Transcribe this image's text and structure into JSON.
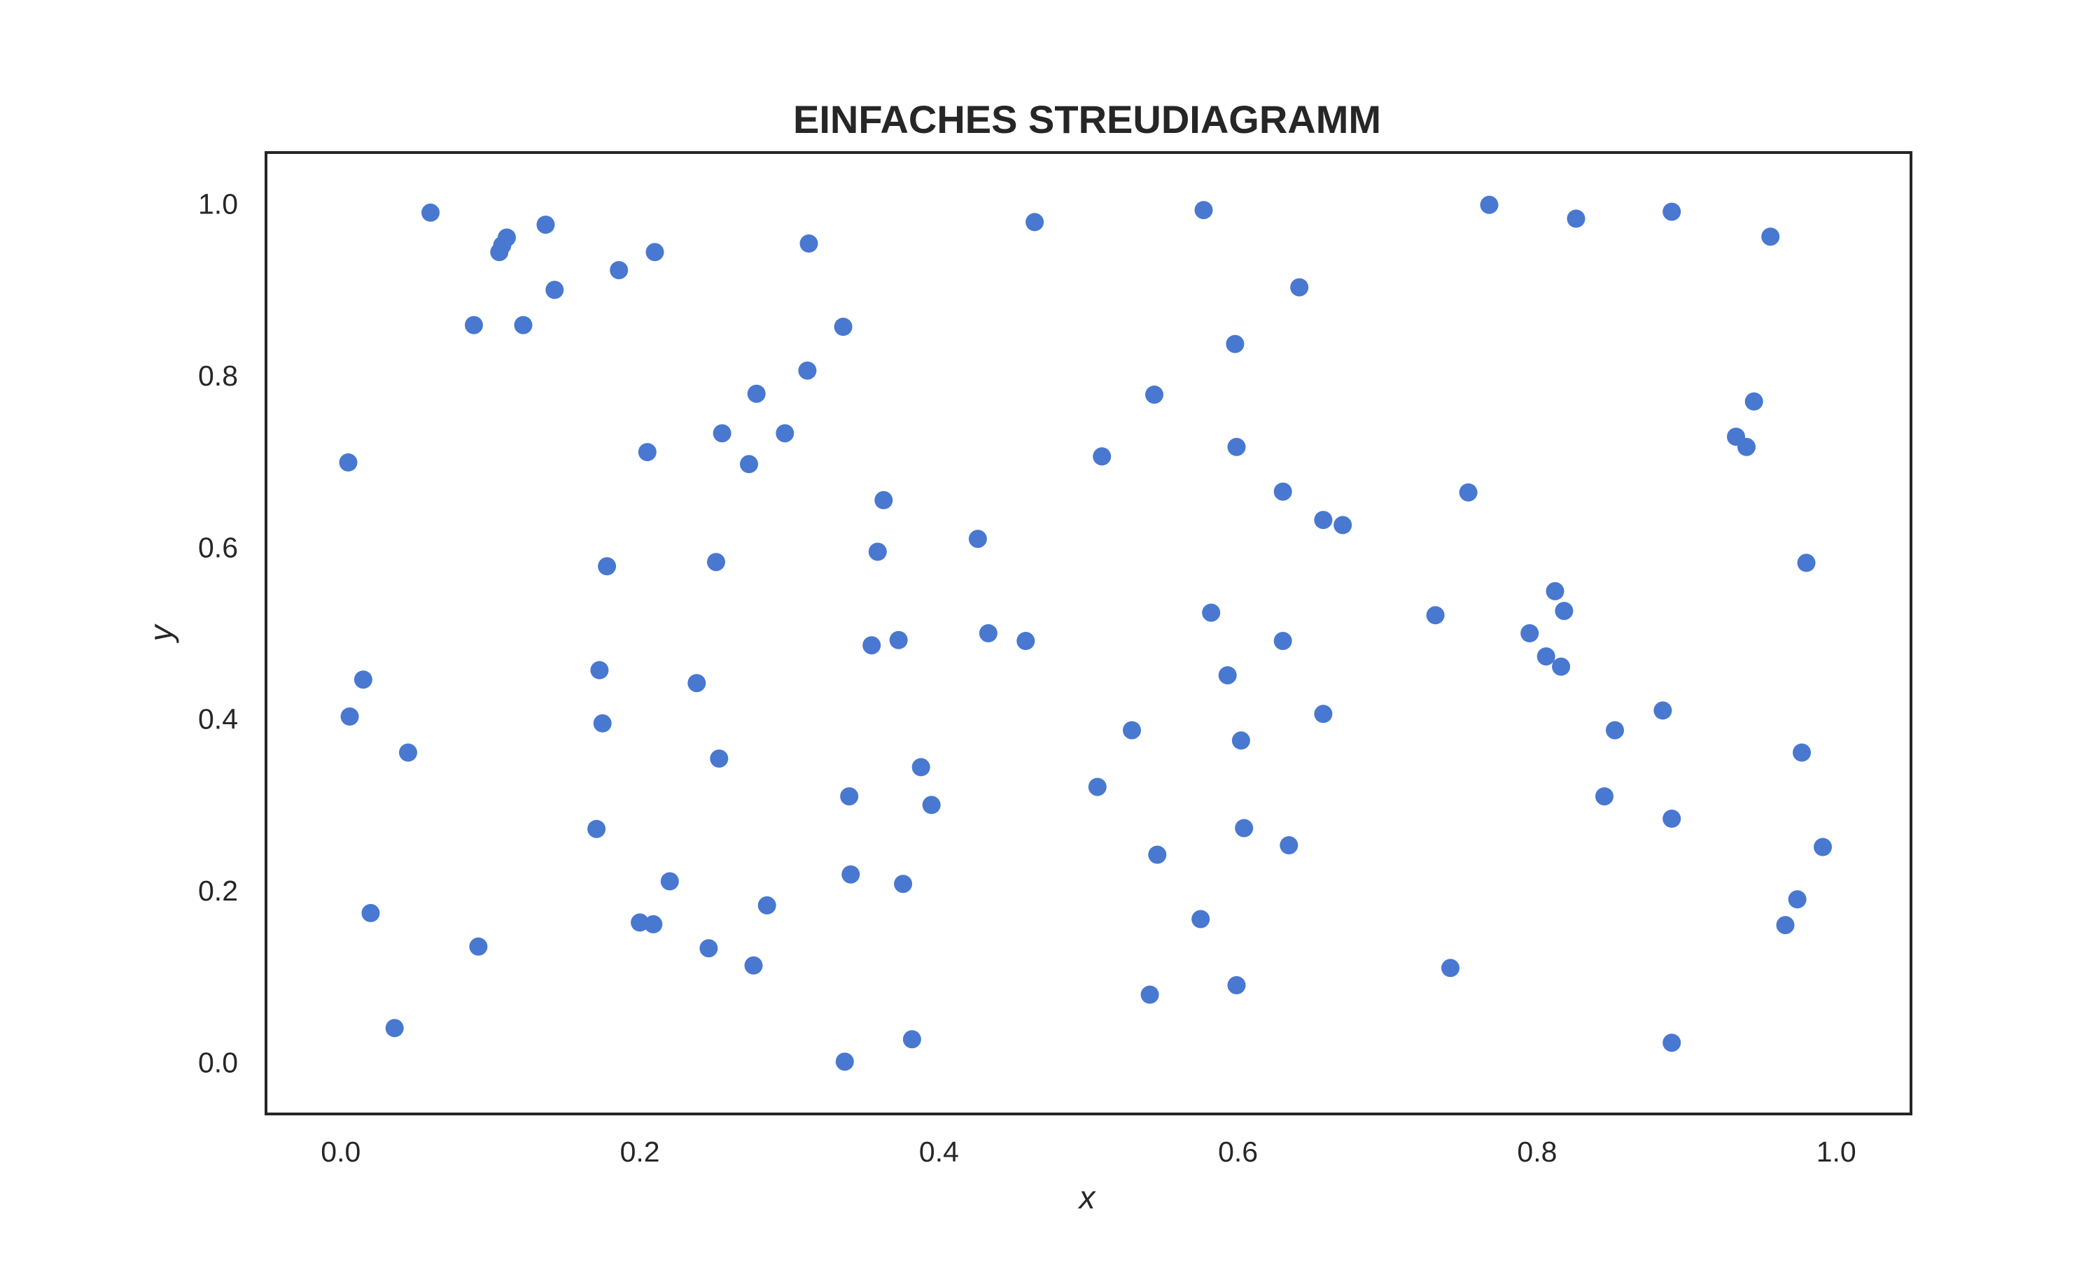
{
  "chart_data": {
    "type": "scatter",
    "title": "EINFACHES STREUDIAGRAMM",
    "xlabel": "x",
    "ylabel": "y",
    "xlim": [
      -0.05,
      1.05
    ],
    "ylim": [
      -0.06,
      1.06
    ],
    "xticks": [
      0.0,
      0.2,
      0.4,
      0.6,
      0.8,
      1.0
    ],
    "yticks": [
      0.0,
      0.2,
      0.4,
      0.6,
      0.8,
      1.0
    ],
    "xtick_labels": [
      "0.0",
      "0.2",
      "0.4",
      "0.6",
      "0.8",
      "1.0"
    ],
    "ytick_labels": [
      "0.0",
      "0.2",
      "0.4",
      "0.6",
      "0.8",
      "1.0"
    ],
    "grid": false,
    "marker_color": "#4878d0",
    "frame_color": "#262626",
    "points": [
      {
        "x": 0.005,
        "y": 0.699
      },
      {
        "x": 0.006,
        "y": 0.403
      },
      {
        "x": 0.015,
        "y": 0.446
      },
      {
        "x": 0.02,
        "y": 0.174
      },
      {
        "x": 0.036,
        "y": 0.04
      },
      {
        "x": 0.045,
        "y": 0.361
      },
      {
        "x": 0.06,
        "y": 0.99
      },
      {
        "x": 0.089,
        "y": 0.859
      },
      {
        "x": 0.092,
        "y": 0.135
      },
      {
        "x": 0.106,
        "y": 0.944
      },
      {
        "x": 0.108,
        "y": 0.952
      },
      {
        "x": 0.111,
        "y": 0.961
      },
      {
        "x": 0.122,
        "y": 0.859
      },
      {
        "x": 0.137,
        "y": 0.976
      },
      {
        "x": 0.143,
        "y": 0.9
      },
      {
        "x": 0.171,
        "y": 0.272
      },
      {
        "x": 0.173,
        "y": 0.457
      },
      {
        "x": 0.175,
        "y": 0.395
      },
      {
        "x": 0.178,
        "y": 0.578
      },
      {
        "x": 0.186,
        "y": 0.923
      },
      {
        "x": 0.2,
        "y": 0.163
      },
      {
        "x": 0.205,
        "y": 0.711
      },
      {
        "x": 0.209,
        "y": 0.161
      },
      {
        "x": 0.21,
        "y": 0.944
      },
      {
        "x": 0.22,
        "y": 0.211
      },
      {
        "x": 0.238,
        "y": 0.442
      },
      {
        "x": 0.246,
        "y": 0.133
      },
      {
        "x": 0.251,
        "y": 0.583
      },
      {
        "x": 0.253,
        "y": 0.354
      },
      {
        "x": 0.255,
        "y": 0.733
      },
      {
        "x": 0.273,
        "y": 0.697
      },
      {
        "x": 0.276,
        "y": 0.113
      },
      {
        "x": 0.278,
        "y": 0.779
      },
      {
        "x": 0.285,
        "y": 0.183
      },
      {
        "x": 0.297,
        "y": 0.733
      },
      {
        "x": 0.312,
        "y": 0.806
      },
      {
        "x": 0.313,
        "y": 0.954
      },
      {
        "x": 0.336,
        "y": 0.857
      },
      {
        "x": 0.337,
        "y": 0.001
      },
      {
        "x": 0.34,
        "y": 0.31
      },
      {
        "x": 0.341,
        "y": 0.219
      },
      {
        "x": 0.355,
        "y": 0.486
      },
      {
        "x": 0.359,
        "y": 0.595
      },
      {
        "x": 0.363,
        "y": 0.655
      },
      {
        "x": 0.373,
        "y": 0.492
      },
      {
        "x": 0.376,
        "y": 0.208
      },
      {
        "x": 0.382,
        "y": 0.027
      },
      {
        "x": 0.388,
        "y": 0.344
      },
      {
        "x": 0.395,
        "y": 0.3
      },
      {
        "x": 0.426,
        "y": 0.61
      },
      {
        "x": 0.433,
        "y": 0.5
      },
      {
        "x": 0.458,
        "y": 0.491
      },
      {
        "x": 0.464,
        "y": 0.979
      },
      {
        "x": 0.506,
        "y": 0.321
      },
      {
        "x": 0.509,
        "y": 0.706
      },
      {
        "x": 0.529,
        "y": 0.387
      },
      {
        "x": 0.541,
        "y": 0.079
      },
      {
        "x": 0.544,
        "y": 0.778
      },
      {
        "x": 0.546,
        "y": 0.242
      },
      {
        "x": 0.575,
        "y": 0.167
      },
      {
        "x": 0.577,
        "y": 0.993
      },
      {
        "x": 0.582,
        "y": 0.524
      },
      {
        "x": 0.593,
        "y": 0.451
      },
      {
        "x": 0.598,
        "y": 0.837
      },
      {
        "x": 0.599,
        "y": 0.09
      },
      {
        "x": 0.599,
        "y": 0.717
      },
      {
        "x": 0.602,
        "y": 0.375
      },
      {
        "x": 0.604,
        "y": 0.273
      },
      {
        "x": 0.63,
        "y": 0.491
      },
      {
        "x": 0.63,
        "y": 0.665
      },
      {
        "x": 0.634,
        "y": 0.253
      },
      {
        "x": 0.641,
        "y": 0.903
      },
      {
        "x": 0.657,
        "y": 0.406
      },
      {
        "x": 0.657,
        "y": 0.632
      },
      {
        "x": 0.67,
        "y": 0.626
      },
      {
        "x": 0.732,
        "y": 0.521
      },
      {
        "x": 0.742,
        "y": 0.11
      },
      {
        "x": 0.754,
        "y": 0.664
      },
      {
        "x": 0.768,
        "y": 0.999
      },
      {
        "x": 0.795,
        "y": 0.5
      },
      {
        "x": 0.806,
        "y": 0.473
      },
      {
        "x": 0.812,
        "y": 0.549
      },
      {
        "x": 0.816,
        "y": 0.461
      },
      {
        "x": 0.818,
        "y": 0.526
      },
      {
        "x": 0.826,
        "y": 0.983
      },
      {
        "x": 0.845,
        "y": 0.31
      },
      {
        "x": 0.852,
        "y": 0.387
      },
      {
        "x": 0.884,
        "y": 0.41
      },
      {
        "x": 0.89,
        "y": 0.991
      },
      {
        "x": 0.89,
        "y": 0.284
      },
      {
        "x": 0.89,
        "y": 0.023
      },
      {
        "x": 0.933,
        "y": 0.729
      },
      {
        "x": 0.94,
        "y": 0.717
      },
      {
        "x": 0.945,
        "y": 0.77
      },
      {
        "x": 0.956,
        "y": 0.962
      },
      {
        "x": 0.966,
        "y": 0.16
      },
      {
        "x": 0.974,
        "y": 0.19
      },
      {
        "x": 0.977,
        "y": 0.361
      },
      {
        "x": 0.98,
        "y": 0.582
      },
      {
        "x": 0.991,
        "y": 0.251
      }
    ]
  }
}
